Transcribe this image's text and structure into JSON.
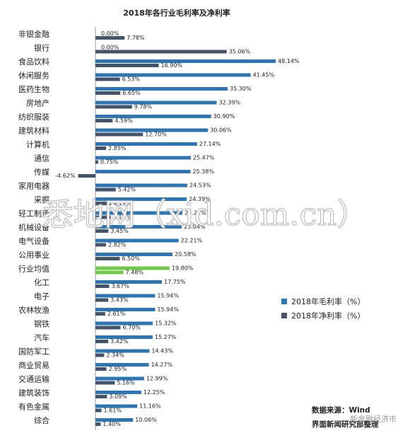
{
  "chart_data": {
    "type": "bar",
    "orientation": "horizontal",
    "title": "2018年各行业毛利率及净利率",
    "categories": [
      "非银金融",
      "银行",
      "食品饮料",
      "休闲服务",
      "医药生物",
      "房地产",
      "纺织服装",
      "建筑材料",
      "计算机",
      "通信",
      "传媒",
      "家用电器",
      "采掘",
      "轻工制造",
      "机械设备",
      "电气设备",
      "公用事业",
      "行业均值",
      "化工",
      "电子",
      "农林牧渔",
      "钢铁",
      "汽车",
      "国防军工",
      "商业贸易",
      "交通运输",
      "建筑装饰",
      "有色金属",
      "综合"
    ],
    "series": [
      {
        "name": "2018年毛利率（%）",
        "color": "#2e75b6",
        "values": [
          0.0,
          0.0,
          48.14,
          41.45,
          35.3,
          32.39,
          30.9,
          30.06,
          27.14,
          25.47,
          25.38,
          24.53,
          24.39,
          23.22,
          23.04,
          22.21,
          20.58,
          19.8,
          17.75,
          15.94,
          15.94,
          15.32,
          15.27,
          14.43,
          14.27,
          12.99,
          12.25,
          11.16,
          10.06
        ],
        "labels": [
          "0.00%",
          "0.00%",
          "48.14%",
          "41.45%",
          "35.30%",
          "32.39%",
          "30.90%",
          "30.06%",
          "27.14%",
          "25.47%",
          "25.38%",
          "24.53%",
          "24.39%",
          "23.22%",
          "23.04%",
          "22.21%",
          "20.58%",
          "19.80%",
          "17.75%",
          "15.94%",
          "15.94%",
          "15.32%",
          "15.27%",
          "14.43%",
          "14.27%",
          "12.99%",
          "12.25%",
          "11.16%",
          "10.06%"
        ]
      },
      {
        "name": "2018年净利率（%）",
        "color": "#44546a",
        "values": [
          7.78,
          35.06,
          16.9,
          6.53,
          6.65,
          9.78,
          4.59,
          12.7,
          2.85,
          0.75,
          -4.62,
          5.42,
          4.19,
          4.12,
          3.45,
          2.82,
          6.5,
          7.48,
          3.67,
          3.43,
          2.61,
          6.7,
          3.42,
          2.34,
          2.95,
          5.16,
          3.09,
          1.61,
          1.4
        ],
        "labels": [
          "7.78%",
          "35.06%",
          "16.90%",
          "6.53%",
          "6.65%",
          "9.78%",
          "4.59%",
          "12.70%",
          "2.85%",
          "0.75%",
          "-4.62%",
          "5.42%",
          "4.19%",
          "4.12%",
          "3.45%",
          "2.82%",
          "6.50%",
          "7.48%",
          "3.67%",
          "3.43%",
          "2.61%",
          "6.70%",
          "3.42%",
          "2.34%",
          "2.95%",
          "5.16%",
          "3.09%",
          "1.61%",
          "1.40%"
        ]
      }
    ],
    "highlight": {
      "category": "行业均值",
      "color": "#70c94a"
    },
    "xlim": [
      -4.62,
      48.14
    ],
    "legend": "right-middle",
    "grid": false
  },
  "source_note": [
    "数据来源：Wind",
    "界面新闻研究部整理"
  ],
  "watermark": "悉地网（xid.com.cn）",
  "corner_mark": "新金融经济市"
}
